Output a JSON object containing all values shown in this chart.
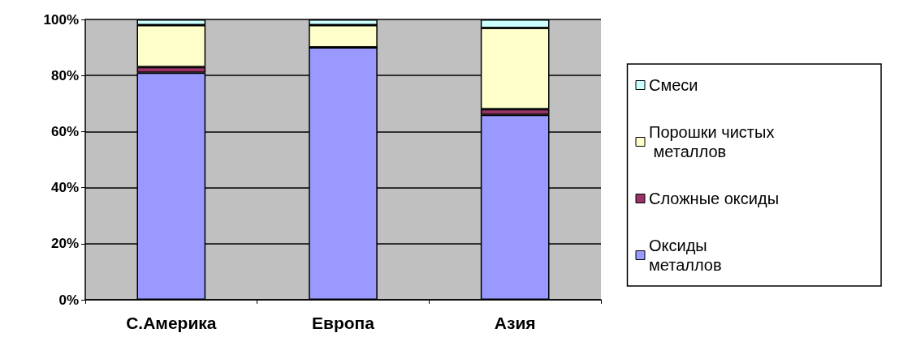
{
  "chart_data": {
    "type": "bar",
    "stacked": true,
    "categories": [
      "С.Америка",
      "Европа",
      "Азия"
    ],
    "series": [
      {
        "name": "Оксиды металлов",
        "color": "#9999ff",
        "values": [
          81,
          90,
          66
        ]
      },
      {
        "name": "Сложные оксиды",
        "color": "#993366",
        "values": [
          2,
          0,
          2
        ]
      },
      {
        "name": "Порошки чистых металлов",
        "color": "#ffffcc",
        "values": [
          15,
          8,
          29
        ]
      },
      {
        "name": "Смеси",
        "color": "#ccffff",
        "values": [
          2,
          2,
          3
        ]
      }
    ],
    "ylim": [
      0,
      100
    ],
    "yticks": [
      {
        "value": 0,
        "label": "0%"
      },
      {
        "value": 20,
        "label": "20%"
      },
      {
        "value": 40,
        "label": "40%"
      },
      {
        "value": 60,
        "label": "60%"
      },
      {
        "value": 80,
        "label": "80%"
      },
      {
        "value": 100,
        "label": "100%"
      }
    ],
    "grid": "y",
    "legend": "right"
  }
}
